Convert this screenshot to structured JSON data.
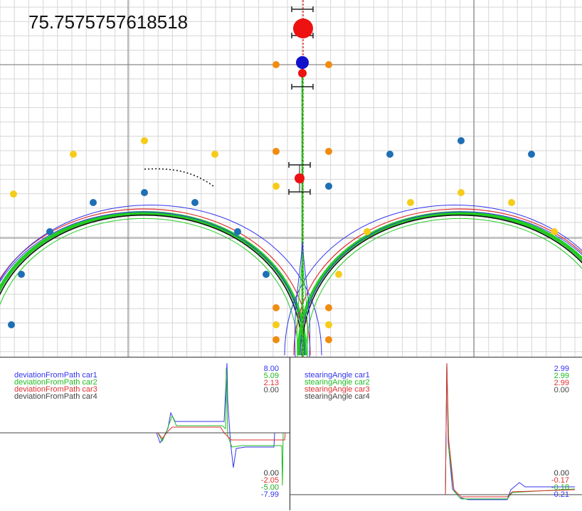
{
  "simulation": {
    "time_readout": "75.7575757618518",
    "colors": {
      "grid_minor": "#d6d6d6",
      "grid_major": "#777777",
      "path_center": "#111111",
      "path_green": "#22cc22",
      "path_red": "#e03030",
      "path_blue": "#3333ee",
      "cone_blue": "#1f6fb5",
      "cone_yellow": "#f5cc1a",
      "cone_orange": "#f08c10",
      "car_red": "#ee1111",
      "car_blue": "#1111cc"
    }
  },
  "panels": {
    "deviation": {
      "legend": [
        "deviationFromPath car1",
        "deviationFromPath car2",
        "deviationFromPath car3",
        "deviationFromPath car4"
      ],
      "max_values": [
        "8.00",
        "5.09",
        "2.13",
        "0.00"
      ],
      "min_values": [
        "0.00",
        "-2.05",
        "-5.00",
        "-7.99"
      ],
      "min_colors": [
        "#333333",
        "#e03030",
        "#22aa22",
        "#3333ee"
      ]
    },
    "steering": {
      "legend": [
        "stearingAngle car1",
        "stearingAngle car2",
        "stearingAngle car3",
        "stearingAngle car4"
      ],
      "max_values": [
        "2.99",
        "2.99",
        "2.99",
        "0.00"
      ],
      "min_values": [
        "0.00",
        "-0.17",
        "-0.18",
        "-0.21"
      ],
      "min_colors": [
        "#333333",
        "#e03030",
        "#22aa22",
        "#3333ee"
      ]
    },
    "series_colors": [
      "#3333ee",
      "#22bb22",
      "#e03030",
      "#444444"
    ]
  }
}
